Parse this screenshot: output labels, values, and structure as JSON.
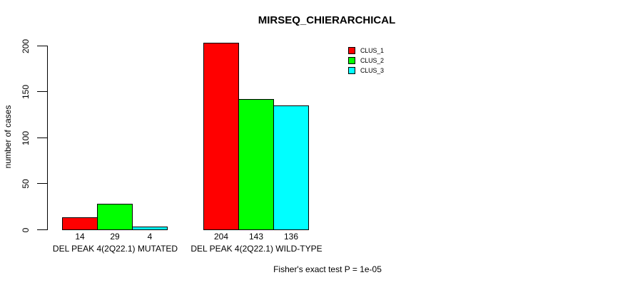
{
  "chart_data": {
    "type": "bar",
    "title": "MIRSEQ_CHIERARCHICAL",
    "ylabel": "number of cases",
    "xlabel": "",
    "categories": [
      "DEL PEAK 4(2Q22.1) MUTATED",
      "DEL PEAK 4(2Q22.1) WILD-TYPE"
    ],
    "series": [
      {
        "name": "CLUS_1",
        "color": "#ff0000",
        "values": [
          14,
          204
        ]
      },
      {
        "name": "CLUS_2",
        "color": "#00ff00",
        "values": [
          29,
          143
        ]
      },
      {
        "name": "CLUS_3",
        "color": "#00ffff",
        "values": [
          4,
          136
        ]
      }
    ],
    "yticks": [
      0,
      50,
      100,
      150,
      200
    ],
    "ylim": [
      0,
      210
    ],
    "grid": false,
    "legend_position": "top-right",
    "annotation": "Fisher's exact test P = 1e-05"
  },
  "colors": {
    "background": "#ffffff",
    "axis": "#000000",
    "bar_border": "#000000",
    "text": "#000000"
  }
}
